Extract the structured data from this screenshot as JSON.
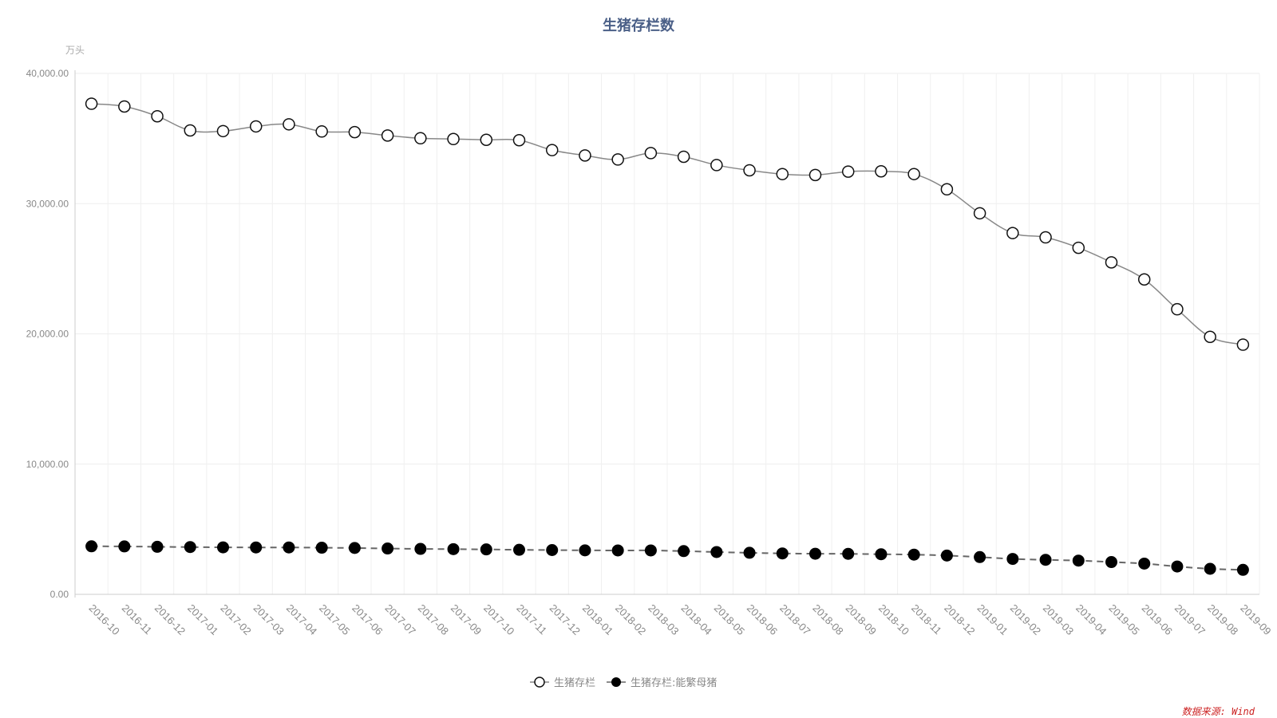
{
  "chart_data": {
    "type": "line",
    "title": "生猪存栏数",
    "y_unit": "万头",
    "ylim": [
      0,
      40000
    ],
    "yticks": [
      0,
      10000,
      20000,
      30000,
      40000
    ],
    "ytick_labels": [
      "0.00",
      "10,000.00",
      "20,000.00",
      "30,000.00",
      "40,000.00"
    ],
    "grid": true,
    "legend_position": "bottom-center",
    "categories": [
      "2016-10",
      "2016-11",
      "2016-12",
      "2017-01",
      "2017-02",
      "2017-03",
      "2017-04",
      "2017-05",
      "2017-06",
      "2017-07",
      "2017-08",
      "2017-09",
      "2017-10",
      "2017-11",
      "2017-12",
      "2018-01",
      "2018-02",
      "2018-03",
      "2018-04",
      "2018-05",
      "2018-06",
      "2018-07",
      "2018-08",
      "2018-09",
      "2018-10",
      "2018-11",
      "2018-12",
      "2019-01",
      "2019-02",
      "2019-03",
      "2019-04",
      "2019-05",
      "2019-06",
      "2019-07",
      "2019-08",
      "2019-09"
    ],
    "series": [
      {
        "name": "生猪存栏",
        "style": "solid",
        "marker": "hollow-circle",
        "color": "#888888",
        "values": [
          37670,
          37460,
          36710,
          35620,
          35570,
          35930,
          36090,
          35540,
          35490,
          35230,
          35020,
          34960,
          34900,
          34870,
          34110,
          33700,
          33390,
          33880,
          33600,
          32960,
          32560,
          32270,
          32200,
          32460,
          32480,
          32270,
          31100,
          29260,
          27740,
          27410,
          26610,
          25490,
          24180,
          21890,
          19770,
          19170
        ]
      },
      {
        "name": "生猪存栏:能繁母猪",
        "style": "dashed",
        "marker": "filled-circle",
        "color": "#666666",
        "values": [
          3690,
          3680,
          3650,
          3630,
          3610,
          3600,
          3600,
          3580,
          3560,
          3520,
          3490,
          3470,
          3450,
          3420,
          3400,
          3380,
          3370,
          3370,
          3320,
          3250,
          3190,
          3140,
          3120,
          3110,
          3080,
          3050,
          2980,
          2860,
          2720,
          2650,
          2590,
          2480,
          2360,
          2140,
          1960,
          1880
        ]
      }
    ]
  },
  "source_note": "数据来源: Wind"
}
